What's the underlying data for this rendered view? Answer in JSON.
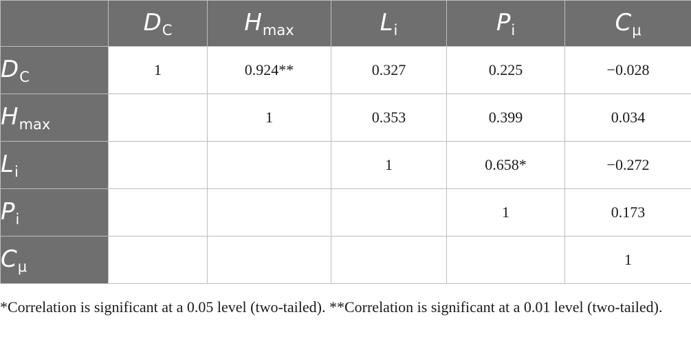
{
  "columns": [
    {
      "main": "D",
      "sub": "C"
    },
    {
      "main": "H",
      "sub": "max"
    },
    {
      "main": "L",
      "sub": "i"
    },
    {
      "main": "P",
      "sub": "i"
    },
    {
      "main": "C",
      "sub": "μ"
    }
  ],
  "rows": [
    {
      "label": {
        "main": "D",
        "sub": "C"
      },
      "values": [
        "1",
        "0.924**",
        "0.327",
        "0.225",
        "−0.028"
      ]
    },
    {
      "label": {
        "main": "H",
        "sub": "max"
      },
      "values": [
        "",
        "1",
        "0.353",
        "0.399",
        "0.034"
      ]
    },
    {
      "label": {
        "main": "L",
        "sub": "i"
      },
      "values": [
        "",
        "",
        "1",
        "0.658*",
        "−0.272"
      ]
    },
    {
      "label": {
        "main": "P",
        "sub": "i"
      },
      "values": [
        "",
        "",
        "",
        "1",
        "0.173"
      ]
    },
    {
      "label": {
        "main": "C",
        "sub": "μ"
      },
      "values": [
        "",
        "",
        "",
        "",
        "1"
      ]
    }
  ],
  "footnote": "*Correlation is significant at a 0.05 level (two-tailed). **Correlation is significant at a 0.01 level (two-tailed)."
}
